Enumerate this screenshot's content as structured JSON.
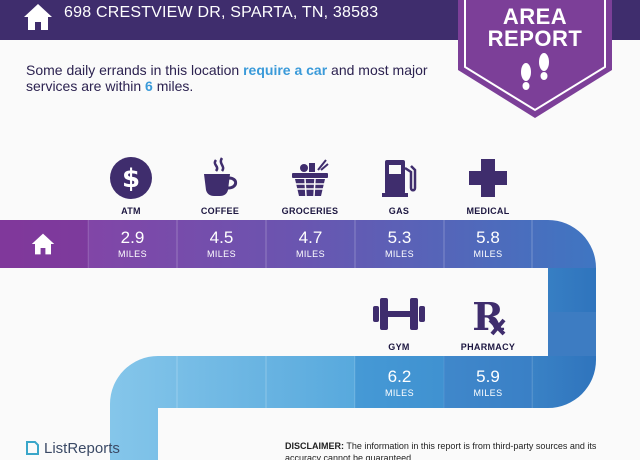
{
  "header": {
    "address": "698 CRESTVIEW DR, SPARTA, TN, 38583"
  },
  "badge": {
    "line1": "AREA",
    "line2": "REPORT"
  },
  "summary": {
    "part1": "Some daily errands in this location ",
    "highlight1": "require a car",
    "part2": " and most major services are within ",
    "highlight2": "6",
    "part3": " miles."
  },
  "categories": [
    {
      "label": "ATM",
      "icon": "dollar-icon",
      "distance": "2.9",
      "unit": "MILES"
    },
    {
      "label": "COFFEE",
      "icon": "coffee-cup-icon",
      "distance": "4.5",
      "unit": "MILES"
    },
    {
      "label": "GROCERIES",
      "icon": "grocery-basket-icon",
      "distance": "4.7",
      "unit": "MILES"
    },
    {
      "label": "GAS",
      "icon": "gas-pump-icon",
      "distance": "5.3",
      "unit": "MILES"
    },
    {
      "label": "MEDICAL",
      "icon": "medical-cross-icon",
      "distance": "5.8",
      "unit": "MILES"
    },
    {
      "label": "GYM",
      "icon": "dumbbell-icon",
      "distance": "6.2",
      "unit": "MILES"
    },
    {
      "label": "PHARMACY",
      "icon": "rx-icon",
      "distance": "5.9",
      "unit": "MILES"
    }
  ],
  "footer": {
    "brand": "ListReports",
    "disclaimer_label": "DISCLAIMER:",
    "disclaimer_text": " The information in this report is from third-party sources and its accuracy cannot be guaranteed."
  },
  "colors": {
    "header": "#3f2d6d",
    "badge": "#7c3f98",
    "highlight": "#3a9ad9",
    "band_purple": "#8b3fa3",
    "band_blue": "#3a7cc5",
    "band_light": "#7fc0e6"
  }
}
